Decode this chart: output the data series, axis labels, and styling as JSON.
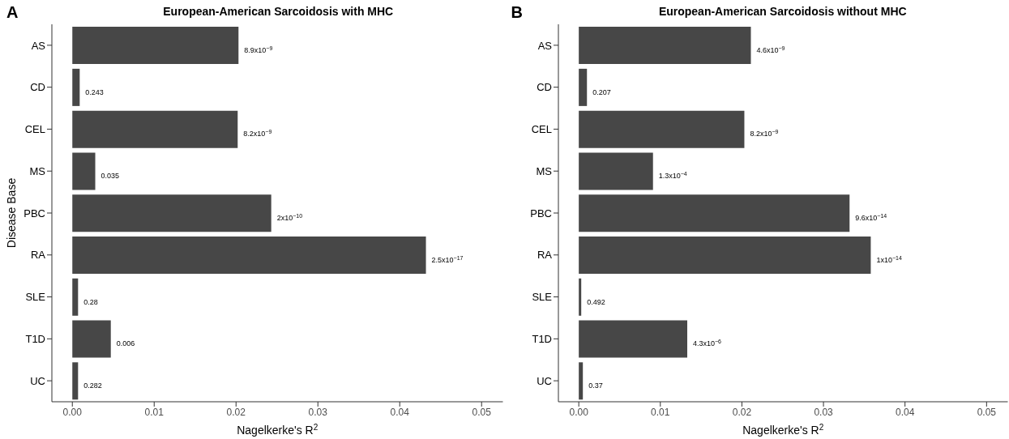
{
  "chart_data": [
    {
      "type": "bar",
      "orientation": "horizontal",
      "title": "European-American Sarcoidosis with MHC",
      "xlabel": "Nagelkerke's R$^{2}$",
      "ylabel": "Disease Base",
      "categories": [
        "AS",
        "CD",
        "CEL",
        "MS",
        "PBC",
        "RA",
        "SLE",
        "T1D",
        "UC"
      ],
      "series": [
        {
          "color": "#474747",
          "values": [
            0.0203,
            0.0009,
            0.0202,
            0.0028,
            0.0243,
            0.0432,
            0.0007,
            0.0047,
            0.0007
          ]
        }
      ],
      "annotations": [
        "A",
        {
          "text": "8.9x10$^{−9}$",
          "x": 0.0203,
          "y": "AS"
        },
        {
          "text": "0.243",
          "x": 0.0009,
          "y": "CD"
        },
        {
          "text": "8.2x10$^{−9}$",
          "x": 0.0202,
          "y": "CEL"
        },
        {
          "text": "0.035",
          "x": 0.0028,
          "y": "MS"
        },
        {
          "text": "2x10$^{−10}$",
          "x": 0.0243,
          "y": "PBC"
        },
        {
          "text": "2.5x10$^{−17}$",
          "x": 0.0432,
          "y": "RA"
        },
        {
          "text": "0.28",
          "x": 0.0007,
          "y": "SLE"
        },
        {
          "text": "0.006",
          "x": 0.0047,
          "y": "T1D"
        },
        {
          "text": "0.282",
          "x": 0.0007,
          "y": "UC"
        }
      ],
      "xlim": [
        -0.0025,
        0.0526
      ],
      "xticks": [
        {
          "value": 0,
          "label": "0.00"
        },
        0.01,
        0.02,
        0.03,
        0.04,
        0.05
      ],
      "grid": false,
      "legend": false
    },
    {
      "type": "bar",
      "orientation": "horizontal",
      "title": "European-American Sarcoidosis without MHC",
      "xlabel": "Nagelkerke's R$^{2}$",
      "categories": [
        "AS",
        "CD",
        "CEL",
        "MS",
        "PBC",
        "RA",
        "SLE",
        "T1D",
        "UC"
      ],
      "series": [
        {
          "color": "#474747",
          "values": [
            0.0211,
            0.001,
            0.0203,
            0.0091,
            0.0332,
            0.0358,
            0.0003,
            0.0133,
            0.0005
          ]
        }
      ],
      "annotations": [
        "B",
        {
          "text": "4.6x10$^{−9}$",
          "x": 0.0211,
          "y": "AS"
        },
        {
          "text": "0.207",
          "x": 0.001,
          "y": "CD"
        },
        {
          "text": "8.2x10$^{−9}$",
          "x": 0.0203,
          "y": "CEL"
        },
        {
          "text": "1.3x10$^{−4}$",
          "x": 0.0091,
          "y": "MS"
        },
        {
          "text": "9.6x10$^{−14}$",
          "x": 0.0332,
          "y": "PBC"
        },
        {
          "text": "1x10$^{−14}$",
          "x": 0.0358,
          "y": "RA"
        },
        {
          "text": "0.492",
          "x": 0.0003,
          "y": "SLE"
        },
        {
          "text": "4.3x10$^{−6}$",
          "x": 0.0133,
          "y": "T1D"
        },
        {
          "text": "0.37",
          "x": 0.0005,
          "y": "UC"
        }
      ],
      "xlim": [
        -0.0025,
        0.0526
      ],
      "xticks": [
        {
          "value": 0,
          "label": "0.00"
        },
        0.01,
        0.02,
        0.03,
        0.04,
        0.05
      ],
      "grid": false,
      "legend": false
    }
  ]
}
